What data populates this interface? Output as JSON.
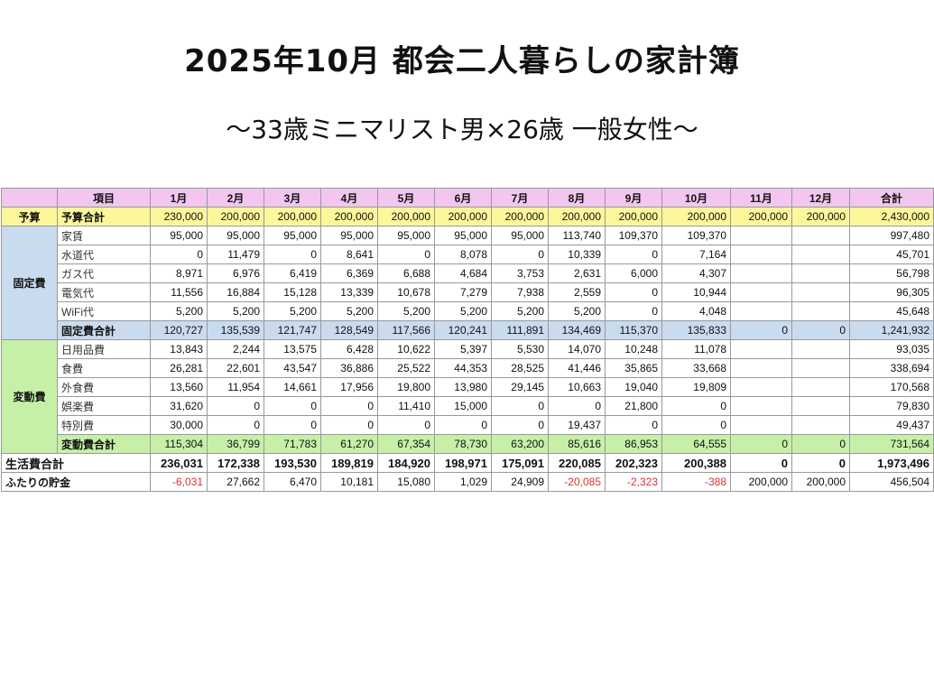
{
  "page": {
    "title": "2025年10月 都会二人暮らしの家計簿",
    "subtitle": "〜33歳ミニマリスト男×26歳 一般女性〜"
  },
  "table": {
    "headers": [
      "",
      "項目",
      "1月",
      "2月",
      "3月",
      "4月",
      "5月",
      "6月",
      "7月",
      "8月",
      "9月",
      "10月",
      "11月",
      "12月",
      "合計"
    ],
    "budget": {
      "category": "予算",
      "label": "予算合計",
      "values": [
        "230,000",
        "200,000",
        "200,000",
        "200,000",
        "200,000",
        "200,000",
        "200,000",
        "200,000",
        "200,000",
        "200,000",
        "200,000",
        "200,000",
        "2,430,000"
      ]
    },
    "fixed": {
      "category": "固定費",
      "items": [
        {
          "label": "家賃",
          "values": [
            "95,000",
            "95,000",
            "95,000",
            "95,000",
            "95,000",
            "95,000",
            "95,000",
            "113,740",
            "109,370",
            "109,370",
            "",
            "",
            "997,480"
          ]
        },
        {
          "label": "水道代",
          "values": [
            "0",
            "11,479",
            "0",
            "8,641",
            "0",
            "8,078",
            "0",
            "10,339",
            "0",
            "7,164",
            "",
            "",
            "45,701"
          ]
        },
        {
          "label": "ガス代",
          "values": [
            "8,971",
            "6,976",
            "6,419",
            "6,369",
            "6,688",
            "4,684",
            "3,753",
            "2,631",
            "6,000",
            "4,307",
            "",
            "",
            "56,798"
          ]
        },
        {
          "label": "電気代",
          "values": [
            "11,556",
            "16,884",
            "15,128",
            "13,339",
            "10,678",
            "7,279",
            "7,938",
            "2,559",
            "0",
            "10,944",
            "",
            "",
            "96,305"
          ]
        },
        {
          "label": "WiFi代",
          "values": [
            "5,200",
            "5,200",
            "5,200",
            "5,200",
            "5,200",
            "5,200",
            "5,200",
            "5,200",
            "0",
            "4,048",
            "",
            "",
            "45,648"
          ]
        }
      ],
      "total": {
        "label": "固定費合計",
        "values": [
          "120,727",
          "135,539",
          "121,747",
          "128,549",
          "117,566",
          "120,241",
          "111,891",
          "134,469",
          "115,370",
          "135,833",
          "0",
          "0",
          "1,241,932"
        ]
      }
    },
    "variable": {
      "category": "変動費",
      "items": [
        {
          "label": "日用品費",
          "values": [
            "13,843",
            "2,244",
            "13,575",
            "6,428",
            "10,622",
            "5,397",
            "5,530",
            "14,070",
            "10,248",
            "11,078",
            "",
            "",
            "93,035"
          ]
        },
        {
          "label": "食費",
          "values": [
            "26,281",
            "22,601",
            "43,547",
            "36,886",
            "25,522",
            "44,353",
            "28,525",
            "41,446",
            "35,865",
            "33,668",
            "",
            "",
            "338,694"
          ]
        },
        {
          "label": "外食費",
          "values": [
            "13,560",
            "11,954",
            "14,661",
            "17,956",
            "19,800",
            "13,980",
            "29,145",
            "10,663",
            "19,040",
            "19,809",
            "",
            "",
            "170,568"
          ]
        },
        {
          "label": "娯楽費",
          "values": [
            "31,620",
            "0",
            "0",
            "0",
            "11,410",
            "15,000",
            "0",
            "0",
            "21,800",
            "0",
            "",
            "",
            "79,830"
          ]
        },
        {
          "label": "特別費",
          "values": [
            "30,000",
            "0",
            "0",
            "0",
            "0",
            "0",
            "0",
            "19,437",
            "0",
            "0",
            "",
            "",
            "49,437"
          ]
        }
      ],
      "total": {
        "label": "変動費合計",
        "values": [
          "115,304",
          "36,799",
          "71,783",
          "61,270",
          "67,354",
          "78,730",
          "63,200",
          "85,616",
          "86,953",
          "64,555",
          "0",
          "0",
          "731,564"
        ]
      }
    },
    "living": {
      "label": "生活費合計",
      "values": [
        "236,031",
        "172,338",
        "193,530",
        "189,819",
        "184,920",
        "198,971",
        "175,091",
        "220,085",
        "202,323",
        "200,388",
        "0",
        "0",
        "1,973,496"
      ]
    },
    "savings": {
      "label": "ふたりの貯金",
      "values": [
        "-6,031",
        "27,662",
        "6,470",
        "10,181",
        "15,080",
        "1,029",
        "24,909",
        "-20,085",
        "-2,323",
        "-388",
        "200,000",
        "200,000",
        "456,504"
      ]
    }
  },
  "colors": {
    "header": "#f2c6ee",
    "budget": "#fbf79a",
    "fixed": "#c9dbef",
    "variable": "#c6f0a8",
    "negative": "#e03030"
  }
}
